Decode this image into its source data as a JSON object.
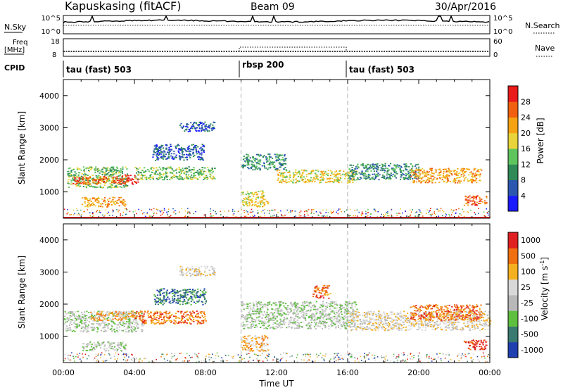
{
  "header": {
    "station": "Kapuskasing (fitACF)",
    "beam": "Beam 09",
    "date": "30/Apr/2016"
  },
  "noise_panel": {
    "left_label": "N.Sky",
    "left_tick_top": "10^5",
    "left_tick_bottom": "10^0",
    "right_tick_top": "10^5",
    "right_tick_bottom": "10^0",
    "right_label": "N.Search"
  },
  "freq_panel": {
    "left_label_line1": "Freq",
    "left_label_line2": "[MHz]",
    "left_tick_top": "18",
    "left_tick_bottom": "8",
    "right_tick_top": "60",
    "right_tick_bottom": "0",
    "right_label": "Nave"
  },
  "cpid_panel": {
    "label": "CPID",
    "segments": [
      "tau (fast) 503",
      "rbsp 200",
      "tau (fast) 503"
    ]
  },
  "power_colorbar": {
    "label": "Power [dB]",
    "ticks": [
      "4",
      "8",
      "12",
      "16",
      "20",
      "24",
      "28"
    ],
    "colors": [
      "#1a1aff",
      "#2b57b0",
      "#2f8a57",
      "#5ec45e",
      "#e8d33a",
      "#f6a313",
      "#f06010",
      "#ea1a1a"
    ]
  },
  "velocity_colorbar": {
    "label": "Velocity [m s",
    "label_sup": "-1",
    "label_end": "]",
    "ticks": [
      "1000",
      "500",
      "100",
      "25",
      "-25",
      "-100",
      "-500",
      "-1000"
    ],
    "colors": [
      "#2040b0",
      "#3a7a70",
      "#5fbf3f",
      "#b8b8b8",
      "#d8d8d8",
      "#f5b020",
      "#f07010",
      "#e02020"
    ]
  },
  "chart_data": [
    {
      "type": "heatmap",
      "name": "power",
      "ylabel": "Slant Range [km]",
      "y_ticks": [
        "1000",
        "2000",
        "3000",
        "4000"
      ],
      "ylim": [
        180,
        4500
      ],
      "xlim": [
        0,
        24
      ],
      "x_ticks": [
        "00:00",
        "04:00",
        "08:00",
        "12:00",
        "16:00",
        "20:00",
        "00:00"
      ],
      "x_tick_hours": [
        0,
        4,
        8,
        12,
        16,
        20,
        24
      ],
      "boundaries_hours": [
        10,
        16
      ],
      "regions": [
        {
          "t0": 0.2,
          "t1": 3.6,
          "r0": 1150,
          "r1": 1800,
          "level": 3
        },
        {
          "t0": 0.5,
          "t1": 3.0,
          "r0": 1250,
          "r1": 1500,
          "level": 6
        },
        {
          "t0": 3.0,
          "t1": 4.2,
          "r0": 1250,
          "r1": 1550,
          "level": 7
        },
        {
          "t0": 1.0,
          "t1": 3.5,
          "r0": 550,
          "r1": 850,
          "level": 5
        },
        {
          "t0": 4.0,
          "t1": 8.5,
          "r0": 1400,
          "r1": 1800,
          "level": 3
        },
        {
          "t0": 5.0,
          "t1": 8.0,
          "r0": 2000,
          "r1": 2500,
          "level": 1
        },
        {
          "t0": 6.5,
          "t1": 8.5,
          "r0": 2900,
          "r1": 3200,
          "level": 1
        },
        {
          "t0": 10.0,
          "t1": 12.5,
          "r0": 1700,
          "r1": 2200,
          "level": 2
        },
        {
          "t0": 10.0,
          "t1": 11.5,
          "r0": 550,
          "r1": 1050,
          "level": 4
        },
        {
          "t0": 12.0,
          "t1": 16.5,
          "r0": 1300,
          "r1": 1700,
          "level": 4
        },
        {
          "t0": 16.0,
          "t1": 20.0,
          "r0": 1400,
          "r1": 1900,
          "level": 2
        },
        {
          "t0": 19.5,
          "t1": 23.5,
          "r0": 1300,
          "r1": 1750,
          "level": 5
        },
        {
          "t0": 22.5,
          "t1": 23.8,
          "r0": 600,
          "r1": 900,
          "level": 6
        }
      ]
    },
    {
      "type": "heatmap",
      "name": "velocity",
      "ylabel": "Slant Range [km]",
      "y_ticks": [
        "1000",
        "2000",
        "3000",
        "4000"
      ],
      "ylim": [
        180,
        4500
      ],
      "xlim": [
        0,
        24
      ],
      "x_ticks": [
        "00:00",
        "04:00",
        "08:00",
        "12:00",
        "16:00",
        "20:00",
        "00:00"
      ],
      "x_tick_hours": [
        0,
        4,
        8,
        12,
        16,
        20,
        24
      ],
      "xlabel": "Time UT",
      "boundaries_hours": [
        10,
        16
      ],
      "regions": [
        {
          "t0": 0.0,
          "t1": 4.5,
          "r0": 1150,
          "r1": 1800,
          "level": 3
        },
        {
          "t0": 1.5,
          "t1": 4.0,
          "r0": 1500,
          "r1": 1800,
          "level": 5
        },
        {
          "t0": 1.0,
          "t1": 3.5,
          "r0": 550,
          "r1": 850,
          "level": 3
        },
        {
          "t0": 4.0,
          "t1": 8.0,
          "r0": 1400,
          "r1": 1800,
          "level": 6
        },
        {
          "t0": 5.0,
          "t1": 8.0,
          "r0": 2000,
          "r1": 2500,
          "level": 1
        },
        {
          "t0": 6.5,
          "t1": 8.5,
          "r0": 2900,
          "r1": 3200,
          "level": 4
        },
        {
          "t0": 10.0,
          "t1": 16.5,
          "r0": 1250,
          "r1": 2100,
          "level": 3
        },
        {
          "t0": 10.0,
          "t1": 11.5,
          "r0": 550,
          "r1": 1050,
          "level": 5
        },
        {
          "t0": 14.0,
          "t1": 15.0,
          "r0": 2200,
          "r1": 2600,
          "level": 6
        },
        {
          "t0": 16.0,
          "t1": 24.0,
          "r0": 1200,
          "r1": 1800,
          "level": 4
        },
        {
          "t0": 19.5,
          "t1": 23.5,
          "r0": 1500,
          "r1": 2000,
          "level": 6
        },
        {
          "t0": 22.5,
          "t1": 23.8,
          "r0": 600,
          "r1": 900,
          "level": 7
        }
      ]
    }
  ]
}
